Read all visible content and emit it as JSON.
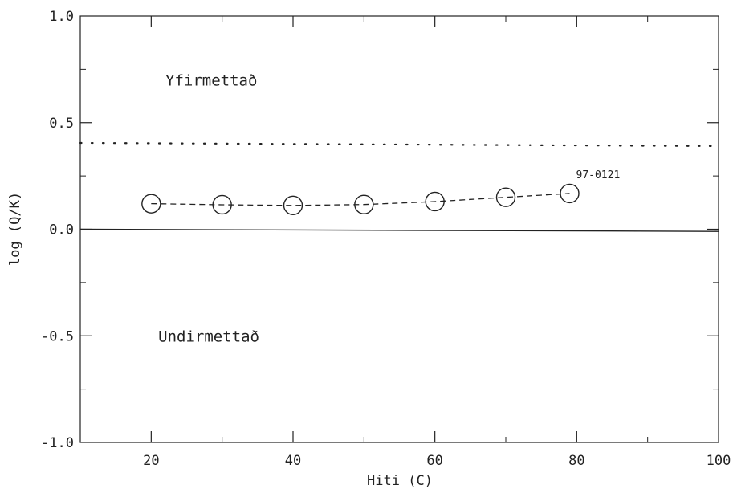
{
  "chart_data": {
    "type": "line",
    "title": "",
    "xlabel": "Hiti (C)",
    "ylabel": "log (Q/K)",
    "xlim": [
      10,
      100
    ],
    "ylim": [
      -1.0,
      1.0
    ],
    "x_ticks": [
      20,
      40,
      60,
      80,
      100
    ],
    "x_tick_labels": [
      "20",
      "40",
      "60",
      "80",
      "100"
    ],
    "y_ticks": [
      -1.0,
      -0.5,
      0.0,
      0.5,
      1.0
    ],
    "y_tick_labels": [
      "-1.0",
      "-0.5",
      "0.0",
      "0.5",
      "1.0"
    ],
    "grid": false,
    "series": [
      {
        "name": "97-0121",
        "x": [
          20,
          30,
          40,
          50,
          60,
          70,
          79
        ],
        "y": [
          0.12,
          0.115,
          0.112,
          0.116,
          0.13,
          0.15,
          0.168
        ],
        "marker": "circle",
        "line": "dashed",
        "color": "#222222"
      }
    ],
    "reference_lines": [
      {
        "y_start": 0.0,
        "y_end": -0.01,
        "style": "solid"
      },
      {
        "y_start": 0.405,
        "y_end": 0.39,
        "style": "dotted"
      }
    ],
    "annotations": [
      {
        "text": "Yfirmettað",
        "x": 22,
        "y": 0.7
      },
      {
        "text": "Undirmettað",
        "x": 21,
        "y": -0.5
      }
    ]
  }
}
